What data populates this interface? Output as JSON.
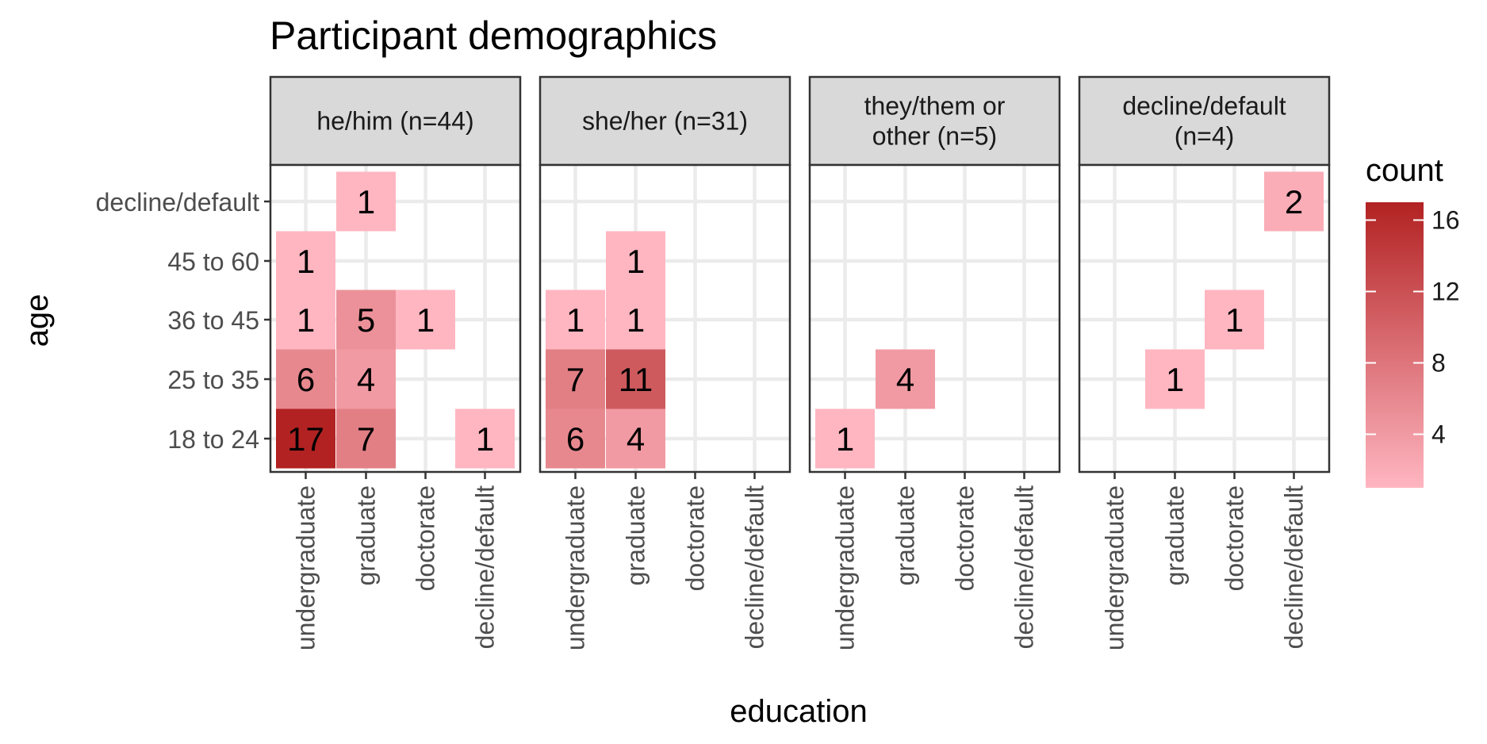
{
  "chart_data": {
    "type": "heatmap",
    "title": "Participant demographics",
    "xlabel": "education",
    "ylabel": "age",
    "x_categories": [
      "undergraduate",
      "graduate",
      "doctorate",
      "decline/default"
    ],
    "y_categories": [
      "18 to 24",
      "25 to 35",
      "36 to 45",
      "45 to 60",
      "decline/default"
    ],
    "facets": [
      {
        "label": "he/him (n=44)",
        "cells": [
          {
            "x": "undergraduate",
            "y": "18 to 24",
            "value": 17
          },
          {
            "x": "graduate",
            "y": "18 to 24",
            "value": 7
          },
          {
            "x": "decline/default",
            "y": "18 to 24",
            "value": 1
          },
          {
            "x": "undergraduate",
            "y": "25 to 35",
            "value": 6
          },
          {
            "x": "graduate",
            "y": "25 to 35",
            "value": 4
          },
          {
            "x": "undergraduate",
            "y": "36 to 45",
            "value": 1
          },
          {
            "x": "graduate",
            "y": "36 to 45",
            "value": 5
          },
          {
            "x": "doctorate",
            "y": "36 to 45",
            "value": 1
          },
          {
            "x": "undergraduate",
            "y": "45 to 60",
            "value": 1
          },
          {
            "x": "graduate",
            "y": "decline/default",
            "value": 1
          }
        ]
      },
      {
        "label": "she/her (n=31)",
        "cells": [
          {
            "x": "undergraduate",
            "y": "18 to 24",
            "value": 6
          },
          {
            "x": "graduate",
            "y": "18 to 24",
            "value": 4
          },
          {
            "x": "undergraduate",
            "y": "25 to 35",
            "value": 7
          },
          {
            "x": "graduate",
            "y": "25 to 35",
            "value": 11
          },
          {
            "x": "undergraduate",
            "y": "36 to 45",
            "value": 1
          },
          {
            "x": "graduate",
            "y": "36 to 45",
            "value": 1
          },
          {
            "x": "graduate",
            "y": "45 to 60",
            "value": 1
          }
        ]
      },
      {
        "label": [
          "they/them or",
          "other (n=5)"
        ],
        "cells": [
          {
            "x": "undergraduate",
            "y": "18 to 24",
            "value": 1
          },
          {
            "x": "graduate",
            "y": "25 to 35",
            "value": 4
          }
        ]
      },
      {
        "label": [
          "decline/default",
          "(n=4)"
        ],
        "cells": [
          {
            "x": "graduate",
            "y": "25 to 35",
            "value": 1
          },
          {
            "x": "doctorate",
            "y": "36 to 45",
            "value": 1
          },
          {
            "x": "decline/default",
            "y": "decline/default",
            "value": 2
          }
        ]
      }
    ],
    "legend": {
      "title": "count",
      "breaks": [
        4,
        8,
        12,
        16
      ],
      "range": [
        1,
        17
      ],
      "low_color": "#FFB6C1",
      "high_color": "#B22222",
      "placement": "right"
    },
    "grid": true
  }
}
